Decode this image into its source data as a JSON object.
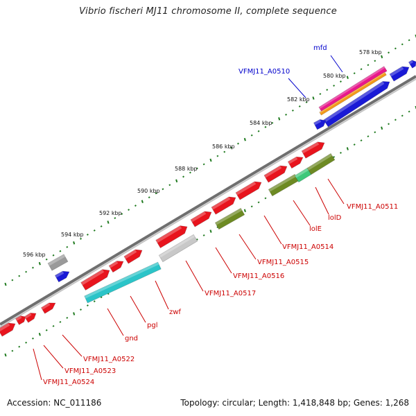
{
  "title": "Vibrio fischeri MJ11 chromosome II, complete sequence",
  "footer": {
    "accession": "Accession: NC_011186",
    "topology": "Topology: circular; Length: 1,418,848 bp; Genes: 1,268"
  },
  "colors": {
    "backbone": "#8a8a8a",
    "tick": "#1f7a1f",
    "label_red": "#cc0000",
    "label_blue": "#0000cc",
    "red": "#e8141d",
    "blue": "#1a1ad6",
    "cyan": "#2bc4c8",
    "olive": "#6d8a23",
    "gray": "#9a9a9a",
    "lightgray": "#c8c8c8",
    "magenta": "#e8188c",
    "orange": "#f39a1a",
    "green": "#3ec87a"
  },
  "kbp_labels": [
    "578 kbp",
    "580 kbp",
    "582 kbp",
    "584 kbp",
    "586 kbp",
    "588 kbp",
    "590 kbp",
    "592 kbp",
    "594 kbp",
    "596 kbp"
  ],
  "gene_labels": [
    "VFMJ11_A0510",
    "mfd",
    "VFMJ11_A0511",
    "lolD",
    "lolE",
    "VFMJ11_A0514",
    "VFMJ11_A0515",
    "VFMJ11_A0516",
    "VFMJ11_A0517",
    "zwf",
    "pgl",
    "gnd",
    "VFMJ11_A0522",
    "VFMJ11_A0523",
    "VFMJ11_A0524"
  ]
}
